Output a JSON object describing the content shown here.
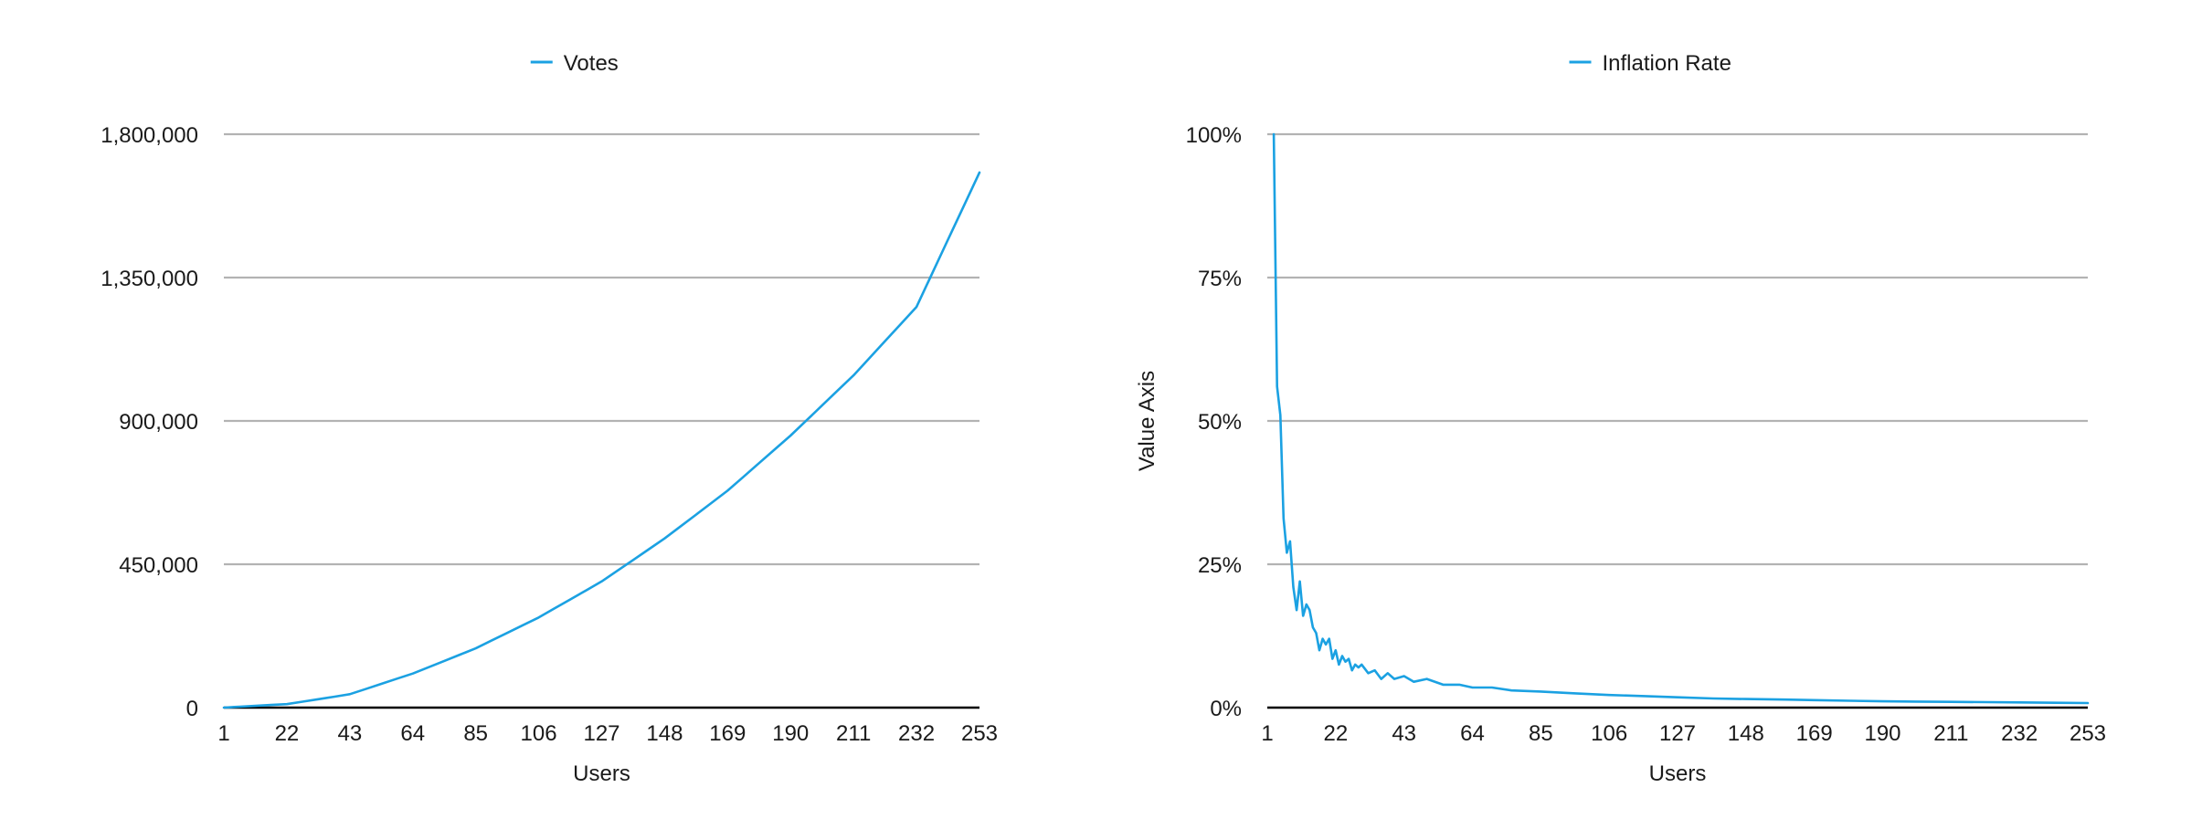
{
  "chart_data": [
    {
      "type": "line",
      "title": "",
      "xlabel": "Users",
      "ylabel": "",
      "legend": {
        "placement": "top-center",
        "entries": [
          "Votes"
        ]
      },
      "grid": true,
      "x_ticks": [
        "1",
        "22",
        "43",
        "64",
        "85",
        "106",
        "127",
        "148",
        "169",
        "190",
        "211",
        "232",
        "253"
      ],
      "y_ticks": [
        "0",
        "450,000",
        "900,000",
        "1,350,000",
        "1,800,000"
      ],
      "xlim": [
        1,
        253
      ],
      "ylim": [
        0,
        1800000
      ],
      "series": [
        {
          "name": "Votes",
          "color": "#1ba1e2",
          "x": [
            1,
            22,
            43,
            64,
            85,
            106,
            127,
            148,
            169,
            190,
            211,
            232,
            253
          ],
          "y": [
            0,
            11000,
            42000,
            107000,
            186000,
            283000,
            396000,
            531000,
            681000,
            854000,
            1043000,
            1258000,
            1680000
          ]
        }
      ]
    },
    {
      "type": "line",
      "title": "",
      "xlabel": "Users",
      "ylabel": "Value Axis",
      "legend": {
        "placement": "top-center",
        "entries": [
          "Inflation Rate"
        ]
      },
      "grid": true,
      "x_ticks": [
        "1",
        "22",
        "43",
        "64",
        "85",
        "106",
        "127",
        "148",
        "169",
        "190",
        "211",
        "232",
        "253"
      ],
      "y_ticks": [
        "0%",
        "25%",
        "50%",
        "75%",
        "100%"
      ],
      "xlim": [
        1,
        253
      ],
      "ylim": [
        0,
        100
      ],
      "series": [
        {
          "name": "Inflation Rate",
          "color": "#1ba1e2",
          "x": [
            3,
            4,
            5,
            6,
            7,
            8,
            9,
            10,
            11,
            12,
            13,
            14,
            15,
            16,
            17,
            18,
            19,
            20,
            21,
            22,
            23,
            24,
            25,
            26,
            27,
            28,
            29,
            30,
            32,
            34,
            36,
            38,
            40,
            43,
            46,
            50,
            55,
            60,
            64,
            70,
            76,
            85,
            95,
            106,
            117,
            127,
            138,
            148,
            160,
            169,
            180,
            190,
            200,
            211,
            222,
            232,
            243,
            253
          ],
          "y": [
            100,
            56,
            51,
            33,
            27,
            29,
            21,
            17,
            22,
            16,
            18,
            17,
            14,
            13,
            10,
            12,
            11,
            12,
            8.5,
            10,
            7.5,
            9,
            8,
            8.5,
            6.5,
            7.5,
            7,
            7.5,
            6,
            6.5,
            5,
            6,
            5,
            5.5,
            4.5,
            5,
            4,
            4,
            3.5,
            3.5,
            3,
            2.8,
            2.5,
            2.2,
            2,
            1.8,
            1.6,
            1.5,
            1.4,
            1.3,
            1.2,
            1.1,
            1.05,
            1.0,
            0.95,
            0.9,
            0.85,
            0.8
          ]
        }
      ]
    }
  ]
}
